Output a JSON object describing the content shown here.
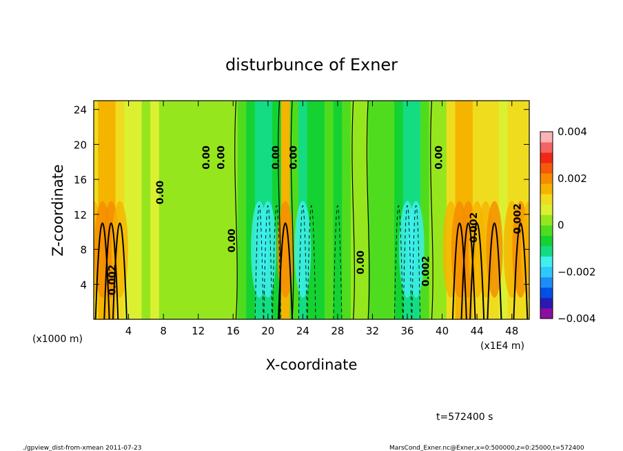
{
  "chart_data": {
    "type": "heatmap",
    "title": "disturbunce of Exner",
    "xlabel": "X-coordinate",
    "ylabel": "Z-coordinate",
    "x_unit_note": "(x1000 m)",
    "x_unit_note_right": "(x1E4 m)",
    "time_label": "t=572400 s",
    "xlim": [
      0,
      50
    ],
    "ylim": [
      0,
      25
    ],
    "x_ticks": [
      "4",
      "8",
      "12",
      "16",
      "20",
      "24",
      "28",
      "32",
      "36",
      "40",
      "44",
      "48"
    ],
    "x_tick_values": [
      4,
      8,
      12,
      16,
      20,
      24,
      28,
      32,
      36,
      40,
      44,
      48
    ],
    "y_ticks": [
      "4",
      "8",
      "12",
      "16",
      "20",
      "24"
    ],
    "y_tick_values": [
      4,
      8,
      12,
      16,
      20,
      24
    ],
    "colorbar": {
      "range": [
        -0.004,
        0.004
      ],
      "tick_labels": [
        "0.004",
        "0.002",
        "0",
        "−0.002",
        "−0.004"
      ],
      "tick_values": [
        0.004,
        0.002,
        0,
        -0.002,
        -0.004
      ],
      "colors": [
        "#8c0ea0",
        "#2a1ab4",
        "#0050e6",
        "#1e8cf5",
        "#2ec8fa",
        "#3ef0f0",
        "#14dc82",
        "#14d232",
        "#50dc1e",
        "#96e61e",
        "#dcf032",
        "#f0dc1e",
        "#f5b400",
        "#f58c00",
        "#f55a0a",
        "#f02814",
        "#f56464",
        "#fab4b4"
      ]
    },
    "x_profile": [
      {
        "x": 0,
        "v": 0.0012
      },
      {
        "x": 1,
        "v": 0.0014
      },
      {
        "x": 2,
        "v": 0.0017
      },
      {
        "x": 3,
        "v": 0.0012
      },
      {
        "x": 4,
        "v": 0.0007
      },
      {
        "x": 5,
        "v": 0.0005
      },
      {
        "x": 6,
        "v": 0.0004
      },
      {
        "x": 7,
        "v": 0.0006
      },
      {
        "x": 8,
        "v": 0.0004
      },
      {
        "x": 9,
        "v": 0.0001
      },
      {
        "x": 10,
        "v": 0.0003
      },
      {
        "x": 11,
        "v": 0.0002
      },
      {
        "x": 12,
        "v": 0.0002
      },
      {
        "x": 13,
        "v": 0.0003
      },
      {
        "x": 14,
        "v": 0.0003
      },
      {
        "x": 15,
        "v": 0.0002
      },
      {
        "x": 16,
        "v": 0.0001
      },
      {
        "x": 17,
        "v": -0.0002
      },
      {
        "x": 18,
        "v": -0.0005
      },
      {
        "x": 19,
        "v": -0.0009
      },
      {
        "x": 20,
        "v": -0.001
      },
      {
        "x": 21,
        "v": -0.0007
      },
      {
        "x": 22,
        "v": 0.0015
      },
      {
        "x": 23,
        "v": -0.0004
      },
      {
        "x": 24,
        "v": -0.0009
      },
      {
        "x": 25,
        "v": -0.0008
      },
      {
        "x": 26,
        "v": -0.0005
      },
      {
        "x": 27,
        "v": -0.0003
      },
      {
        "x": 28,
        "v": -0.0006
      },
      {
        "x": 29,
        "v": -0.0004
      },
      {
        "x": 30,
        "v": 0.0001
      },
      {
        "x": 31,
        "v": 0.0003
      },
      {
        "x": 32,
        "v": -0.0003
      },
      {
        "x": 33,
        "v": -0.0002
      },
      {
        "x": 34,
        "v": -0.0004
      },
      {
        "x": 35,
        "v": -0.0008
      },
      {
        "x": 36,
        "v": -0.0011
      },
      {
        "x": 37,
        "v": -0.001
      },
      {
        "x": 38,
        "v": -0.0004
      },
      {
        "x": 39,
        "v": 0.0001
      },
      {
        "x": 40,
        "v": 0.0004
      },
      {
        "x": 41,
        "v": 0.0009
      },
      {
        "x": 42,
        "v": 0.0014
      },
      {
        "x": 43,
        "v": 0.0017
      },
      {
        "x": 44,
        "v": 0.0012
      },
      {
        "x": 45,
        "v": 0.001
      },
      {
        "x": 46,
        "v": 0.0013
      },
      {
        "x": 47,
        "v": 0.0007
      },
      {
        "x": 48,
        "v": 0.0009
      },
      {
        "x": 49,
        "v": 0.0013
      },
      {
        "x": 50,
        "v": 0.0011
      }
    ],
    "contour_labels": [
      {
        "text": "0.002",
        "x": 2.5,
        "z": 4.5
      },
      {
        "text": "0.00",
        "x": 8.0,
        "z": 14.5
      },
      {
        "text": "0.00",
        "x": 13.3,
        "z": 18.5
      },
      {
        "text": "0.00",
        "x": 15.0,
        "z": 18.5
      },
      {
        "text": "0.00",
        "x": 16.2,
        "z": 9.0
      },
      {
        "text": "0.00",
        "x": 21.3,
        "z": 18.5
      },
      {
        "text": "0.00",
        "x": 23.3,
        "z": 18.5
      },
      {
        "text": "0.00",
        "x": 31.0,
        "z": 6.5
      },
      {
        "text": "0.002",
        "x": 38.5,
        "z": 5.5
      },
      {
        "text": "0.00",
        "x": 40.0,
        "z": 18.5
      },
      {
        "text": "0.002",
        "x": 44.0,
        "z": 10.5
      },
      {
        "text": "0.002",
        "x": 49.0,
        "z": 11.5
      }
    ]
  },
  "footer": {
    "left": "./gpview_dist-from-xmean  2011-07-23",
    "right": "MarsCond_Exner.nc@Exner,x=0:500000,z=0:25000,t=572400"
  }
}
